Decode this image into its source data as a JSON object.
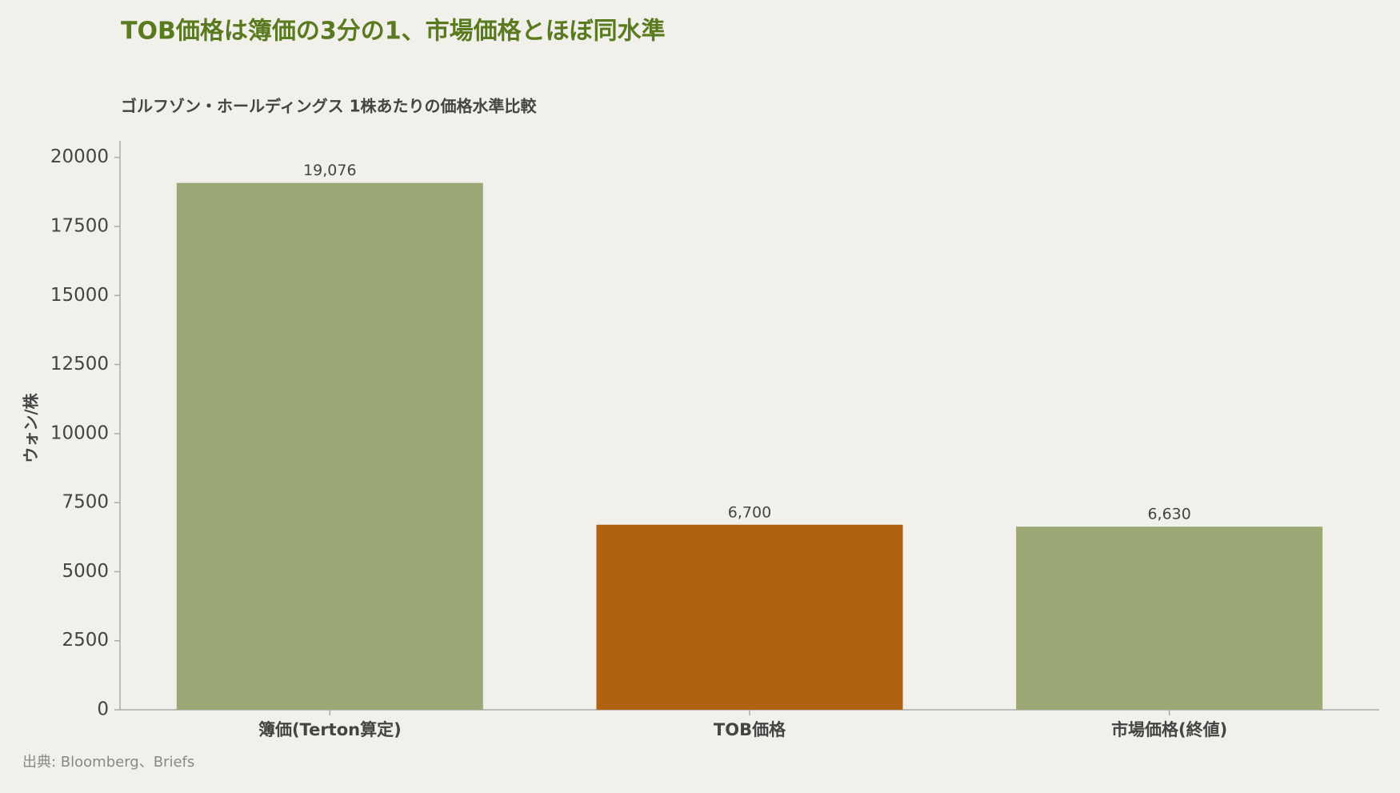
{
  "chart_data": {
    "type": "bar",
    "title": "TOB価格は簿価の3分の1、市場価格とほぼ同水準",
    "subtitle": "ゴルフゾン・ホールディングス 1株あたりの価格水準比較",
    "y_label": "ウォン/株",
    "source": "出典: Bloomberg、Briefs",
    "categories": [
      "簿価(Terton算定)",
      "TOB価格",
      "市場価格(終値)"
    ],
    "values": [
      19076,
      6700,
      6630
    ],
    "value_labels": [
      "19,076",
      "6,700",
      "6,630"
    ],
    "colors": [
      "#9ba876",
      "#b06210",
      "#9ba876"
    ],
    "ylim": [
      0,
      20600
    ],
    "yticks": [
      0,
      2500,
      5000,
      7500,
      10000,
      12500,
      15000,
      17500,
      20000
    ]
  }
}
